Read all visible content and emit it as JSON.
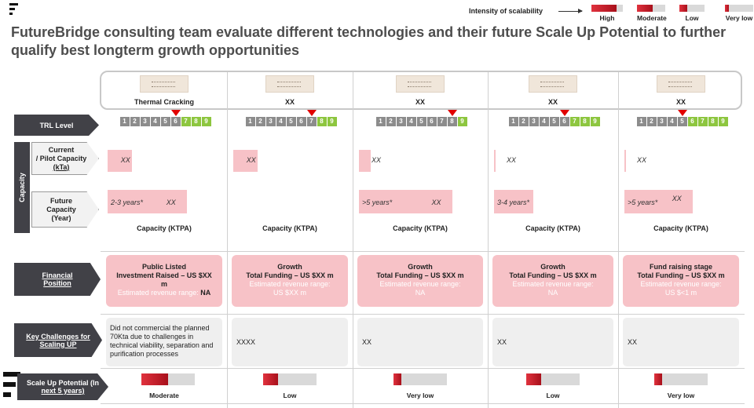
{
  "title": "FutureBridge consulting team evaluate different technologies and their future Scale Up Potential to further qualify best longterm growth opportunities",
  "legend": {
    "title": "Intensity of scalability",
    "items": [
      {
        "label": "High",
        "level": 0.8
      },
      {
        "label": "Moderate",
        "level": 0.55
      },
      {
        "label": "Low",
        "level": 0.3
      },
      {
        "label": "Very low",
        "level": 0.15
      }
    ]
  },
  "row_labels": {
    "trl": "TRL Level",
    "capacity": "Capacity",
    "current_line1": "Current",
    "current_line2": "/ Pilot Capacity",
    "current_line3": "(kTa)",
    "future_line1": "Future",
    "future_line2": "Capacity",
    "future_line3": "(Year)",
    "financial_line1": "Financial",
    "financial_line2": "Position",
    "challenges_line1": "Key Challenges for",
    "challenges_line2": "Scaling UP",
    "scaleup_line1": "Scale Up Potential (In",
    "scaleup_line2": "next 5 years)"
  },
  "trl_numbers": [
    "1",
    "2",
    "3",
    "4",
    "5",
    "6",
    "7",
    "8",
    "9"
  ],
  "ktpa_label": "Capacity (KTPA)",
  "columns": [
    {
      "name": "Thermal Cracking",
      "trl": 6,
      "current": {
        "text": "XX",
        "fraction": 0.22
      },
      "future": {
        "years": "2-3 years*",
        "value": "XX",
        "fraction": 0.72
      },
      "financial": {
        "line1": "Public Listed",
        "line2": "Investment Raised – US $XX",
        "line3": "m",
        "rev_label": "Estimated revenue range:",
        "rev_value": "NA"
      },
      "challenge": "Did not commercial the planned 70Kta due to challenges in technical viability, separation and purification processes",
      "scaleup": {
        "label": "Moderate",
        "level": 0.5
      }
    },
    {
      "name": "XX",
      "trl": 7,
      "current": {
        "text": "XX",
        "fraction": 0.22
      },
      "future": null,
      "financial": {
        "line1": "Growth",
        "line2": "Total Funding – US $XX m",
        "rev_label": "Estimated revenue range:",
        "rev_value": "US  $XX m"
      },
      "challenge": "XXXX",
      "scaleup": {
        "label": "Low",
        "level": 0.28
      }
    },
    {
      "name": "XX",
      "trl": 8,
      "current": {
        "text": "XX",
        "fraction": 0.1
      },
      "future": {
        "years": ">5 years*",
        "value": "XX",
        "fraction": 0.78
      },
      "financial": {
        "line1": "Growth",
        "line2": "Total Funding – US $XX m",
        "rev_label": "Estimated revenue range:",
        "rev_value": "NA"
      },
      "challenge": "XX",
      "scaleup": {
        "label": "Very low",
        "level": 0.14
      }
    },
    {
      "name": "XX",
      "trl": 6,
      "current": {
        "text": "XX",
        "fraction": 0.01
      },
      "future": {
        "years": "3-4 years*",
        "value": "",
        "fraction": 0.34
      },
      "financial": {
        "line1": "Growth",
        "line2": "Total Funding – US $XX m",
        "rev_label": "Estimated revenue range:",
        "rev_value": "NA"
      },
      "challenge": "XX",
      "scaleup": {
        "label": "Low",
        "level": 0.28
      }
    },
    {
      "name": "XX",
      "trl": 5,
      "current": {
        "text": "XX",
        "fraction": 0.01
      },
      "future": {
        "years": ">5 years*",
        "value": "XX",
        "fraction": 0.62
      },
      "financial": {
        "line1": "Fund raising stage",
        "line2": "Total Funding – US $XX m",
        "rev_label": "Estimated revenue range:",
        "rev_value": "US  $<1 m"
      },
      "challenge": "XX",
      "scaleup": {
        "label": "Very low",
        "level": 0.14
      }
    }
  ]
}
